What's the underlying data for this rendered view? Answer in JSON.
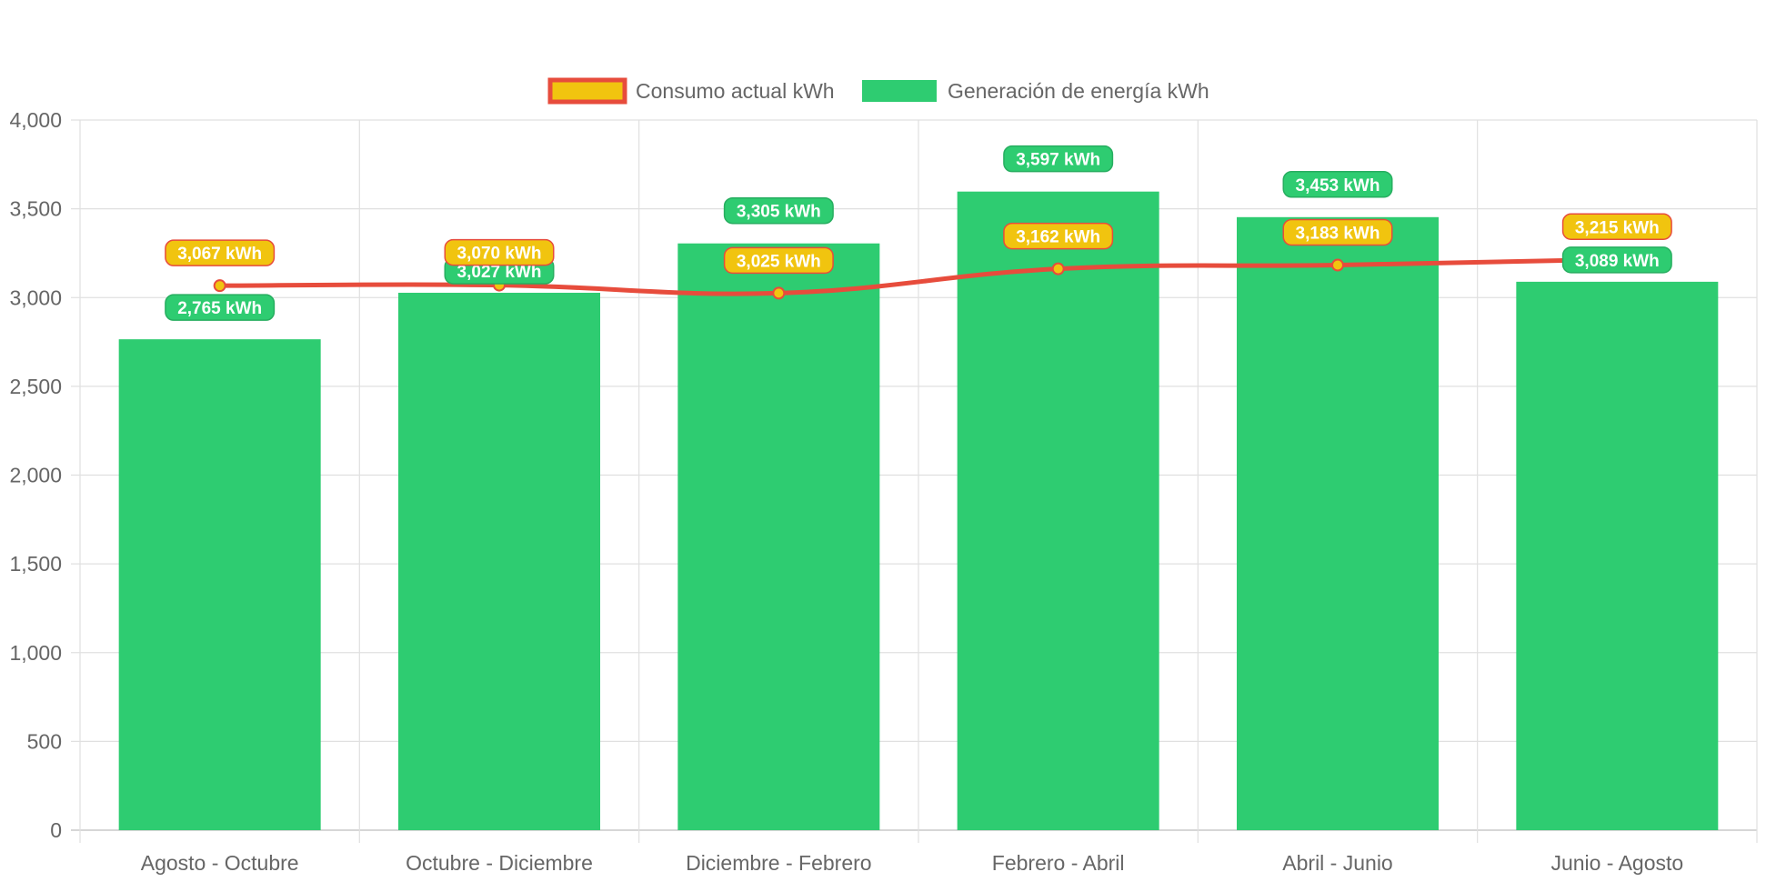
{
  "chart_data": {
    "type": "bar",
    "categories": [
      "Agosto - Octubre",
      "Octubre - Diciembre",
      "Diciembre - Febrero",
      "Febrero - Abril",
      "Abril - Junio",
      "Junio - Agosto"
    ],
    "ylim": [
      0,
      4000
    ],
    "yticks": [
      0,
      500,
      1000,
      1500,
      2000,
      2500,
      3000,
      3500,
      4000
    ],
    "ytick_labels": [
      "0",
      "500",
      "1,000",
      "1,500",
      "2,000",
      "2,500",
      "3,000",
      "3,500",
      "4,000"
    ],
    "grid": true,
    "legend_position": "top",
    "series": [
      {
        "name": "Consumo actual kWh",
        "type": "line",
        "values": [
          3067,
          3070,
          3025,
          3162,
          3183,
          3215
        ],
        "labels": [
          "3,067 kWh",
          "3,070 kWh",
          "3,025 kWh",
          "3,162 kWh",
          "3,183 kWh",
          "3,215 kWh"
        ],
        "line_color": "#e74c3c",
        "fill_color": "#f1c40f"
      },
      {
        "name": "Generación de energía kWh",
        "type": "bar",
        "values": [
          2765,
          3027,
          3305,
          3597,
          3453,
          3089
        ],
        "labels": [
          "2,765 kWh",
          "3,027 kWh",
          "3,305 kWh",
          "3,597 kWh",
          "3,453 kWh",
          "3,089 kWh"
        ],
        "color": "#2ecc71",
        "border_color": "#27ae60"
      }
    ]
  }
}
